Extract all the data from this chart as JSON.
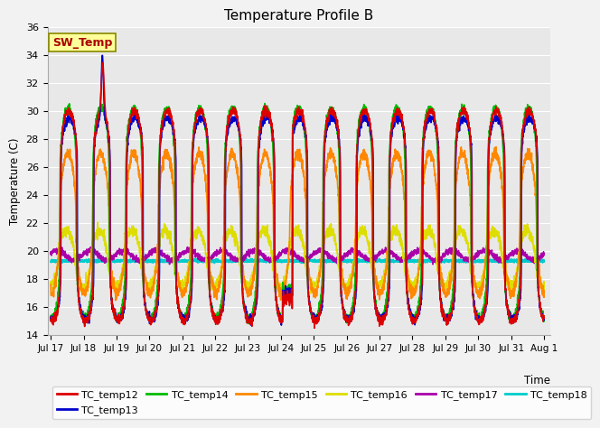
{
  "title": "Temperature Profile B",
  "ylabel": "Temperature (C)",
  "xlabel": "Time",
  "ylim": [
    14,
    36
  ],
  "yticks": [
    14,
    16,
    18,
    20,
    22,
    24,
    26,
    28,
    30,
    32,
    34,
    36
  ],
  "bg_color": "#f2f2f2",
  "plot_bg": "#e8e8e8",
  "annotation_text": "SW_Temp",
  "annotation_bg": "#ffff99",
  "annotation_border": "#888800",
  "grid_color": "#ffffff",
  "series_order": [
    "TC_temp12",
    "TC_temp13",
    "TC_temp14",
    "TC_temp15",
    "TC_temp16",
    "TC_temp17",
    "TC_temp18"
  ],
  "series": {
    "TC_temp12": {
      "color": "#dd0000",
      "lw": 1.2
    },
    "TC_temp13": {
      "color": "#0000cc",
      "lw": 1.2
    },
    "TC_temp14": {
      "color": "#00bb00",
      "lw": 1.2
    },
    "TC_temp15": {
      "color": "#ff8800",
      "lw": 1.2
    },
    "TC_temp16": {
      "color": "#dddd00",
      "lw": 1.2
    },
    "TC_temp17": {
      "color": "#aa00aa",
      "lw": 1.2
    },
    "TC_temp18": {
      "color": "#00cccc",
      "lw": 1.5
    }
  },
  "xtick_labels": [
    "Jul 17",
    "Jul 18",
    "Jul 19",
    "Jul 20",
    "Jul 21",
    "Jul 22",
    "Jul 23",
    "Jul 24",
    "Jul 25",
    "Jul 26",
    "Jul 27",
    "Jul 28",
    "Jul 29",
    "Jul 30",
    "Jul 31",
    "Aug 1"
  ],
  "xtick_positions": [
    0,
    1,
    2,
    3,
    4,
    5,
    6,
    7,
    8,
    9,
    10,
    11,
    12,
    13,
    14,
    15
  ],
  "n_days": 15,
  "pts_per_day": 200
}
